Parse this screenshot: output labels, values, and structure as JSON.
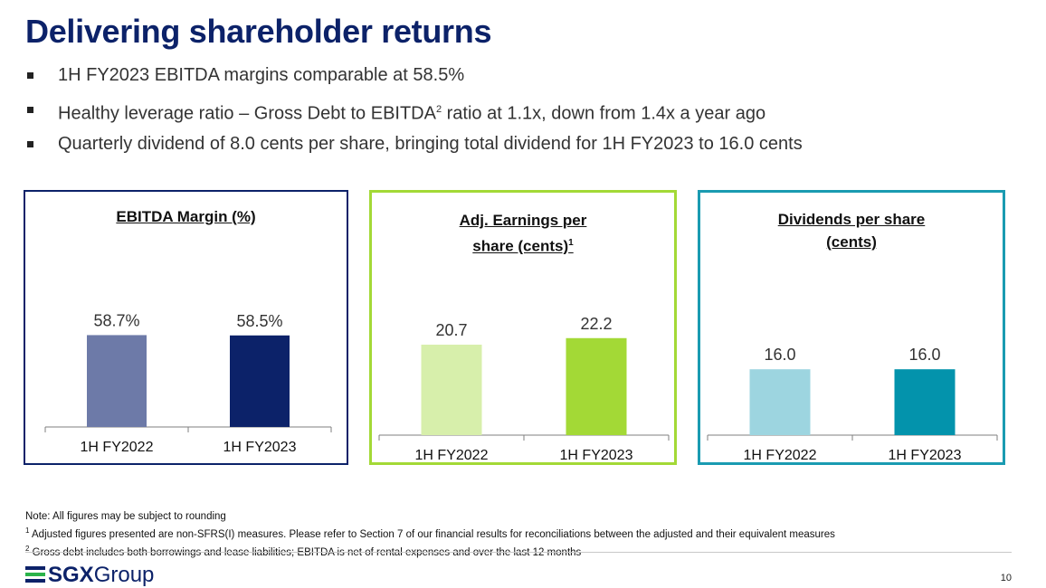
{
  "title": "Delivering shareholder returns",
  "bullets": [
    {
      "text": "1H FY2023 EBITDA margins comparable at 58.5%",
      "sup": "",
      "after": ""
    },
    {
      "text": "Healthy leverage ratio – Gross Debt to EBITDA",
      "sup": "2",
      "after": " ratio at 1.1x, down from 1.4x a year ago"
    },
    {
      "text": "Quarterly dividend of 8.0 cents per share, bringing total dividend for 1H FY2023 to 16.0 cents",
      "sup": "",
      "after": ""
    }
  ],
  "chart_data": [
    {
      "type": "bar",
      "title": "EBITDA Margin (%)",
      "title_sup": "",
      "categories": [
        "1H FY2022",
        "1H FY2023"
      ],
      "values": [
        58.7,
        58.5
      ],
      "data_labels": [
        "58.7%",
        "58.5%"
      ],
      "colors": [
        "#6d7aa8",
        "#0c2269"
      ],
      "border_color": "#0c2269"
    },
    {
      "type": "bar",
      "title": "Adj. Earnings per share (cents)",
      "title_sup": "1",
      "categories": [
        "1H FY2022",
        "1H FY2023"
      ],
      "values": [
        20.7,
        22.2
      ],
      "data_labels": [
        "20.7",
        "22.2"
      ],
      "colors": [
        "#d7efab",
        "#a3d936"
      ],
      "border_color": "#a3d936"
    },
    {
      "type": "bar",
      "title": "Dividends per share (cents)",
      "title_sup": "",
      "categories": [
        "1H FY2022",
        "1H FY2023"
      ],
      "values": [
        16.0,
        16.0
      ],
      "data_labels": [
        "16.0",
        "16.0"
      ],
      "colors": [
        "#9dd5e0",
        "#0393ac"
      ],
      "border_color": "#1a9bb1"
    }
  ],
  "footnotes": {
    "note": "Note: All figures may be subject to rounding",
    "fn1_mark": "1",
    "fn1": " Adjusted figures presented are non-SFRS(I) measures. Please refer to Section 7 of our financial results for reconciliations between the adjusted and their equivalent measures",
    "fn2_mark": "2",
    "fn2": "  Gross debt includes both borrowings and lease liabilities; EBITDA is net of rental expenses and over the last 12 months"
  },
  "logo": {
    "bold": "SGX",
    "rest": "Group"
  },
  "page_number": "10"
}
